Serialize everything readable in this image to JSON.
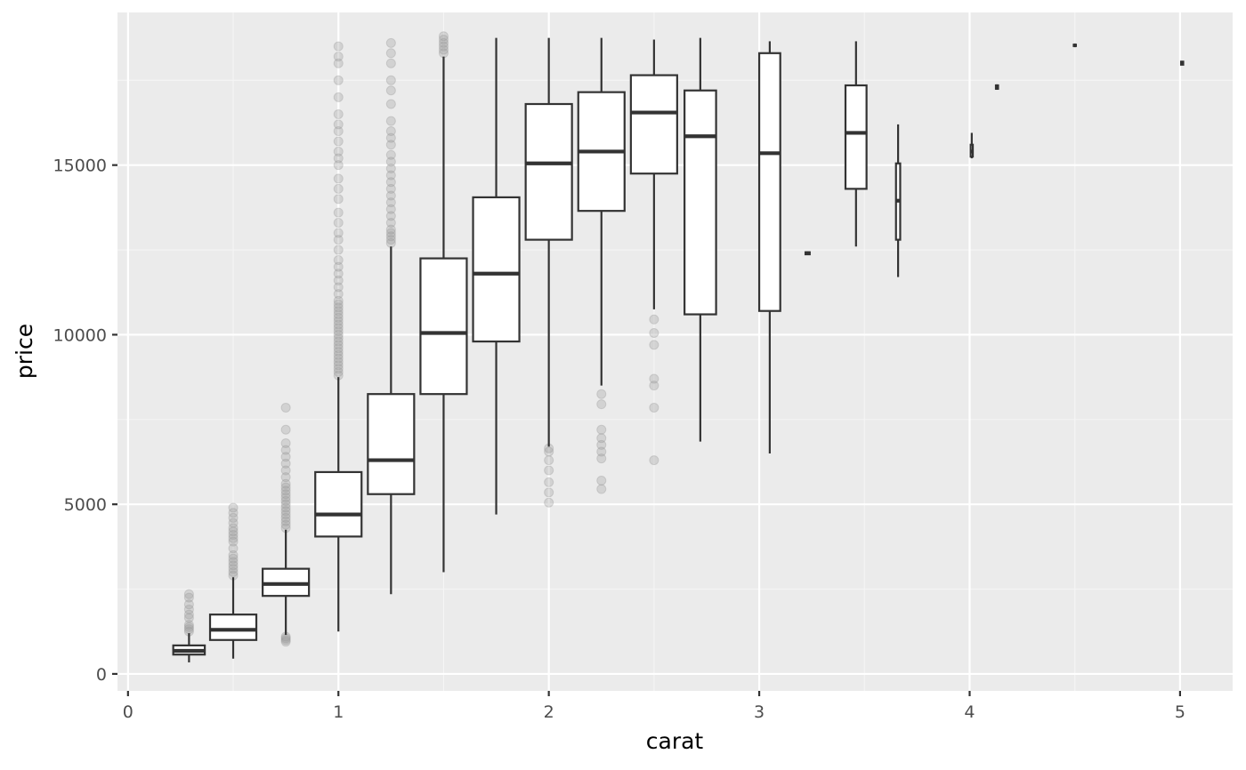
{
  "colors": {
    "panel_bg": "#ebebeb",
    "grid_major": "#ffffff",
    "grid_minor": "#f5f5f5",
    "box_fill": "#ffffff",
    "box_stroke": "#333333",
    "outlier": "#999999",
    "tick": "#333333",
    "text": "#4d4d4d"
  },
  "chart_data": {
    "type": "boxplot",
    "xlabel": "carat",
    "ylabel": "price",
    "xlim": [
      -0.05,
      5.25
    ],
    "ylim": [
      -500,
      19500
    ],
    "x_ticks": [
      0,
      1,
      2,
      3,
      4,
      5
    ],
    "x_tick_labels": [
      "0",
      "1",
      "2",
      "3",
      "4",
      "5"
    ],
    "y_ticks": [
      0,
      5000,
      10000,
      15000
    ],
    "y_tick_labels": [
      "0",
      "5000",
      "10000",
      "15000"
    ],
    "grid": true,
    "boxes": [
      {
        "x": 0.29,
        "width": 0.15,
        "whisker_low": 340,
        "q1": 570,
        "median": 680,
        "q3": 840,
        "whisker_high": 1200,
        "outliers": [
          1250,
          1320,
          1380,
          1450,
          1650,
          1750,
          1900,
          2050,
          2250,
          2350
        ]
      },
      {
        "x": 0.5,
        "width": 0.22,
        "whisker_low": 450,
        "q1": 1000,
        "median": 1300,
        "q3": 1750,
        "whisker_high": 2850,
        "outliers": [
          2900,
          3000,
          3100,
          3200,
          3300,
          3400,
          3500,
          3700,
          3900,
          4000,
          4100,
          4200,
          4300,
          4450,
          4600,
          4750,
          4900
        ]
      },
      {
        "x": 0.75,
        "width": 0.22,
        "whisker_low": 1150,
        "q1": 2300,
        "median": 2650,
        "q3": 3100,
        "whisker_high": 4250,
        "outliers": [
          950,
          1000,
          1050,
          1100,
          4300,
          4400,
          4500,
          4600,
          4700,
          4800,
          4900,
          5000,
          5100,
          5200,
          5300,
          5400,
          5500,
          5600,
          5800,
          6000,
          6200,
          6400,
          6600,
          6800,
          7200,
          7850
        ]
      },
      {
        "x": 1.0,
        "width": 0.22,
        "whisker_low": 1250,
        "q1": 4050,
        "median": 4700,
        "q3": 5950,
        "whisker_high": 8750,
        "outliers": [
          8800,
          8900,
          9000,
          9100,
          9200,
          9300,
          9400,
          9500,
          9600,
          9700,
          9800,
          9900,
          10000,
          10100,
          10200,
          10300,
          10400,
          10500,
          10600,
          10700,
          10800,
          10900,
          11000,
          11200,
          11400,
          11600,
          11800,
          12000,
          12200,
          12500,
          12800,
          13000,
          13300,
          13600,
          14000,
          14300,
          14600,
          15000,
          15200,
          15400,
          15700,
          16000,
          16200,
          16500,
          17000,
          17500,
          18000,
          18200,
          18500
        ]
      },
      {
        "x": 1.25,
        "width": 0.22,
        "whisker_low": 2350,
        "q1": 5300,
        "median": 6300,
        "q3": 8250,
        "whisker_high": 12600,
        "outliers": [
          12700,
          12800,
          12900,
          13000,
          13100,
          13300,
          13500,
          13700,
          13900,
          14100,
          14300,
          14500,
          14700,
          14900,
          15100,
          15300,
          15600,
          15800,
          16000,
          16300,
          16800,
          17200,
          17500,
          18000,
          18300,
          18600
        ]
      },
      {
        "x": 1.5,
        "width": 0.22,
        "whisker_low": 3000,
        "q1": 8250,
        "median": 10050,
        "q3": 12250,
        "whisker_high": 18200,
        "outliers": [
          18300,
          18400,
          18500,
          18600,
          18700,
          18800
        ]
      },
      {
        "x": 1.75,
        "width": 0.22,
        "whisker_low": 4700,
        "q1": 9800,
        "median": 11800,
        "q3": 14050,
        "whisker_high": 18750,
        "outliers": []
      },
      {
        "x": 2.0,
        "width": 0.22,
        "whisker_low": 6700,
        "q1": 12800,
        "median": 15050,
        "q3": 16800,
        "whisker_high": 18750,
        "outliers": [
          5050,
          5350,
          5650,
          6000,
          6300,
          6550,
          6650
        ]
      },
      {
        "x": 2.25,
        "width": 0.22,
        "whisker_low": 8500,
        "q1": 13650,
        "median": 15400,
        "q3": 17150,
        "whisker_high": 18750,
        "outliers": [
          5450,
          5700,
          6350,
          6550,
          6750,
          6950,
          7200,
          7950,
          8250
        ]
      },
      {
        "x": 2.5,
        "width": 0.22,
        "whisker_low": 10750,
        "q1": 14750,
        "median": 16550,
        "q3": 17650,
        "whisker_high": 18700,
        "outliers": [
          6300,
          7850,
          8500,
          8700,
          9700,
          10050,
          10450
        ]
      },
      {
        "x": 2.72,
        "width": 0.15,
        "whisker_low": 6850,
        "q1": 10600,
        "median": 15850,
        "q3": 17200,
        "whisker_high": 18750,
        "outliers": []
      },
      {
        "x": 3.05,
        "width": 0.1,
        "whisker_low": 6500,
        "q1": 10700,
        "median": 15350,
        "q3": 18300,
        "whisker_high": 18650,
        "outliers": []
      },
      {
        "x": 3.23,
        "width": 0.02,
        "whisker_low": 12350,
        "q1": 12370,
        "median": 12400,
        "q3": 12430,
        "whisker_high": 12450,
        "outliers": []
      },
      {
        "x": 3.46,
        "width": 0.1,
        "whisker_low": 12600,
        "q1": 14300,
        "median": 15950,
        "q3": 17350,
        "whisker_high": 18650,
        "outliers": []
      },
      {
        "x": 3.66,
        "width": 0.02,
        "whisker_low": 11700,
        "q1": 12800,
        "median": 13950,
        "q3": 15050,
        "whisker_high": 16200,
        "outliers": []
      },
      {
        "x": 4.01,
        "width": 0.01,
        "whisker_low": 15200,
        "q1": 15250,
        "median": 15400,
        "q3": 15600,
        "whisker_high": 15950,
        "outliers": []
      },
      {
        "x": 4.13,
        "width": 0.005,
        "whisker_low": 17220,
        "q1": 17250,
        "median": 17300,
        "q3": 17350,
        "whisker_high": 17380,
        "outliers": []
      },
      {
        "x": 4.5,
        "width": 0.005,
        "whisker_low": 18490,
        "q1": 18510,
        "median": 18530,
        "q3": 18550,
        "whisker_high": 18570,
        "outliers": []
      },
      {
        "x": 5.01,
        "width": 0.005,
        "whisker_low": 17940,
        "q1": 17960,
        "median": 18010,
        "q3": 18050,
        "whisker_high": 18070,
        "outliers": []
      }
    ]
  }
}
